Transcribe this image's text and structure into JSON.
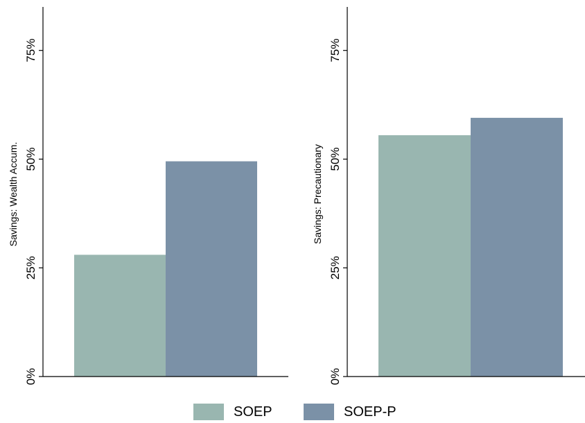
{
  "chart_data": [
    {
      "type": "bar",
      "categories": [
        ""
      ],
      "series": [
        {
          "name": "SOEP",
          "values": [
            28
          ]
        },
        {
          "name": "SOEP-P",
          "values": [
            49.5
          ]
        }
      ],
      "title": "",
      "xlabel": "",
      "ylabel": "Savings: Wealth Accum.",
      "ylim": [
        0,
        85
      ],
      "yticks": [
        0,
        25,
        50,
        75
      ],
      "ytick_labels": [
        "0%",
        "25%",
        "50%",
        "75%"
      ],
      "grid": false
    },
    {
      "type": "bar",
      "categories": [
        ""
      ],
      "series": [
        {
          "name": "SOEP",
          "values": [
            55.5
          ]
        },
        {
          "name": "SOEP-P",
          "values": [
            59.5
          ]
        }
      ],
      "title": "",
      "xlabel": "",
      "ylabel": "Savings: Precautionary",
      "ylim": [
        0,
        85
      ],
      "yticks": [
        0,
        25,
        50,
        75
      ],
      "ytick_labels": [
        "0%",
        "25%",
        "50%",
        "75%"
      ],
      "grid": false
    }
  ],
  "legend": {
    "position": "bottom",
    "items": [
      {
        "label": "SOEP",
        "color": "#99b6b0"
      },
      {
        "label": "SOEP-P",
        "color": "#7b91a7"
      }
    ]
  },
  "colors": {
    "soep": "#99b6b0",
    "soep_p": "#7b91a7",
    "axis": "#000000"
  }
}
